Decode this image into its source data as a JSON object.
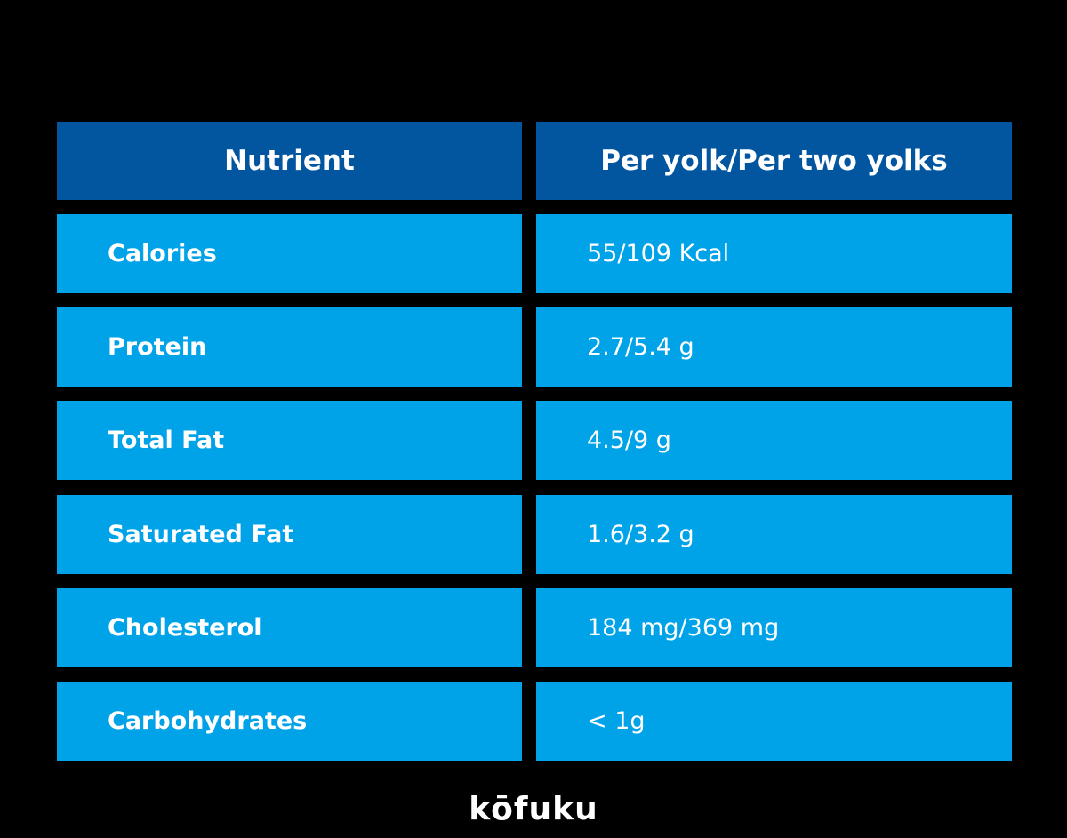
{
  "table": {
    "header": [
      "Nutrient",
      "Per yolk/Per two yolks"
    ],
    "rows": [
      [
        "Calories",
        "55/109 Kcal"
      ],
      [
        "Protein",
        "2.7/5.4 g"
      ],
      [
        "Total Fat",
        "4.5/9 g"
      ],
      [
        "Saturated Fat",
        "1.6/3.2 g"
      ],
      [
        "Cholesterol",
        "184 mg/369 mg"
      ],
      [
        "Carbohydrates",
        "< 1g"
      ]
    ]
  },
  "footer": {
    "logo": "kōfuku"
  }
}
